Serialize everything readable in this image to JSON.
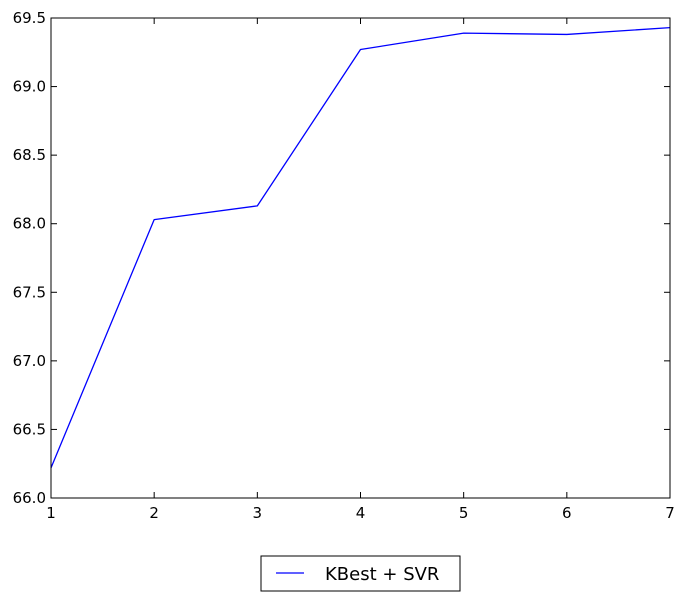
{
  "chart_data": {
    "type": "line",
    "title": "",
    "xlabel": "",
    "ylabel": "",
    "xlim": [
      1,
      7
    ],
    "ylim": [
      66.0,
      69.5
    ],
    "x_ticks": [
      1,
      2,
      3,
      4,
      5,
      6,
      7
    ],
    "x_tick_labels": [
      "1",
      "2",
      "3",
      "4",
      "5",
      "6",
      "7"
    ],
    "y_ticks": [
      66.0,
      66.5,
      67.0,
      67.5,
      68.0,
      68.5,
      69.0,
      69.5
    ],
    "y_tick_labels": [
      "66.0",
      "66.5",
      "67.0",
      "67.5",
      "68.0",
      "68.5",
      "69.0",
      "69.5"
    ],
    "grid": false,
    "legend_position": "bottom-center, outside plot",
    "series": [
      {
        "name": "KBest + SVR",
        "color": "#0000ff",
        "x": [
          1,
          2,
          3,
          4,
          5,
          6,
          7
        ],
        "y": [
          66.22,
          68.03,
          68.13,
          69.27,
          69.39,
          69.38,
          69.43
        ]
      }
    ]
  }
}
